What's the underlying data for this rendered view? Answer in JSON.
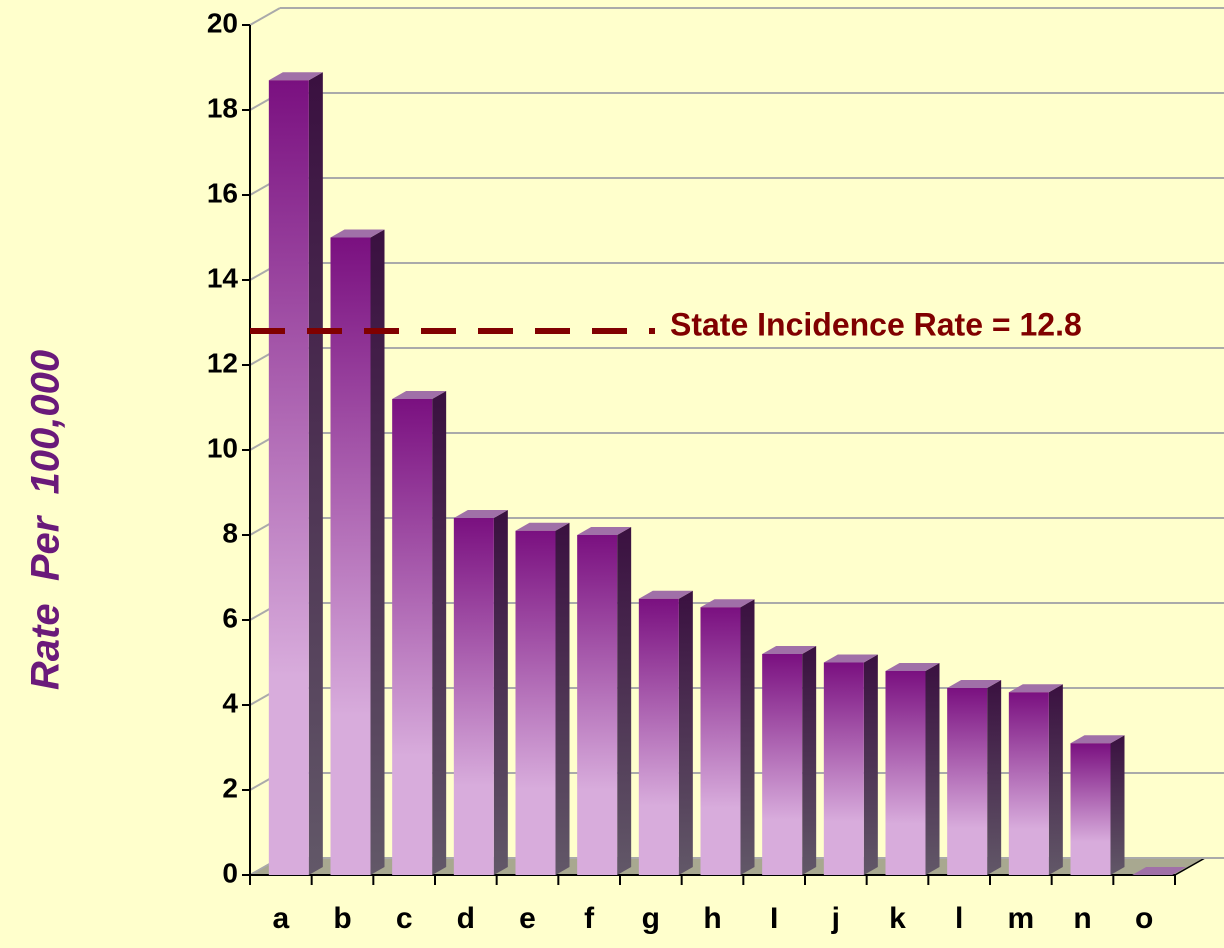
{
  "chart_data": {
    "type": "bar",
    "y_axis_label": "Rate  Per  100,000",
    "categories": [
      "a",
      "b",
      "c",
      "d",
      "e",
      "f",
      "g",
      "h",
      "I",
      "j",
      "k",
      "l",
      "m",
      "n",
      "o"
    ],
    "values": [
      18.7,
      15.0,
      11.2,
      8.4,
      8.1,
      8.0,
      6.5,
      6.3,
      5.2,
      5.0,
      4.8,
      4.4,
      4.3,
      3.1,
      0
    ],
    "color": "#7a1080",
    "ylim": [
      0,
      20
    ],
    "yticks": [
      0,
      2,
      4,
      6,
      8,
      10,
      12,
      14,
      16,
      18,
      20
    ],
    "grid": true,
    "reference_line": {
      "value": 12.8,
      "label": "State Incidence Rate = 12.8",
      "color": "#800000"
    }
  }
}
